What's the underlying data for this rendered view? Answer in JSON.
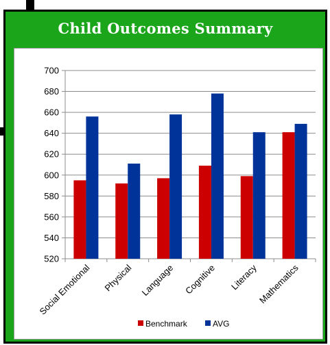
{
  "title": "Child Outcomes Summary",
  "chart_data": {
    "type": "bar",
    "title": "",
    "xlabel": "",
    "ylabel": "",
    "categories": [
      "Social Emotional",
      "Physical",
      "Language",
      "Cognitive",
      "Literacy",
      "Mathematics"
    ],
    "series": [
      {
        "name": "Benchmark",
        "color": "#cc0000",
        "values": [
          595,
          592,
          597,
          609,
          599,
          641
        ]
      },
      {
        "name": "AVG",
        "color": "#003399",
        "values": [
          656,
          611,
          658,
          678,
          641,
          649
        ]
      }
    ],
    "ylim": [
      520,
      700
    ],
    "yticks": [
      "700",
      "680",
      "660",
      "640",
      "620",
      "600",
      "580",
      "560",
      "540",
      "520"
    ],
    "grid": true,
    "legend": "bottom"
  }
}
